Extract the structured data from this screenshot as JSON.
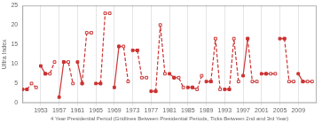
{
  "chart_data": {
    "type": "line",
    "xlabel": "4 Year Presidential Period (Gridlines Between Presidential Periods, Ticks Between 2nd and 3rd Year)",
    "ylabel": "Ultra Index",
    "color": "#cc3333",
    "xlim": [
      1949,
      2013
    ],
    "xticks": [
      1953,
      1957,
      1961,
      1965,
      1969,
      1973,
      1977,
      1981,
      1985,
      1989,
      1993,
      1997,
      2001,
      2005,
      2009
    ],
    "ylim": [
      0,
      25
    ],
    "yticks": [
      0,
      5,
      10,
      15,
      20,
      25
    ],
    "grid": "x",
    "series": [
      {
        "x": [
          1949,
          1950
        ],
        "values": [
          3.5,
          3.5
        ],
        "line_style": "solid",
        "marker": "square"
      },
      {
        "x": [
          1950,
          1951,
          1952
        ],
        "values": [
          3.5,
          5.0,
          4.0
        ],
        "line_style": "dashed",
        "marker": "square_open"
      },
      {
        "x": [
          1953,
          1954
        ],
        "values": [
          9.5,
          7.5
        ],
        "line_style": "solid",
        "marker": "square"
      },
      {
        "x": [
          1954,
          1955,
          1956
        ],
        "values": [
          7.5,
          7.5,
          10.5
        ],
        "line_style": "dashed",
        "marker": "square_open"
      },
      {
        "x": [
          1957,
          1958
        ],
        "values": [
          1.5,
          10.5
        ],
        "line_style": "solid",
        "marker": "square"
      },
      {
        "x": [
          1958,
          1959,
          1960
        ],
        "values": [
          10.5,
          10.5,
          5.0
        ],
        "line_style": "dashed",
        "marker": "square_open"
      },
      {
        "x": [
          1961,
          1962
        ],
        "values": [
          10.5,
          5.0
        ],
        "line_style": "solid",
        "marker": "square"
      },
      {
        "x": [
          1962,
          1963,
          1964
        ],
        "values": [
          5.0,
          18.0,
          18.0
        ],
        "line_style": "dashed",
        "marker": "square_open"
      },
      {
        "x": [
          1965,
          1966
        ],
        "values": [
          5.0,
          5.0
        ],
        "line_style": "solid",
        "marker": "square"
      },
      {
        "x": [
          1966,
          1967,
          1968
        ],
        "values": [
          5.0,
          23.0,
          23.0
        ],
        "line_style": "dashed",
        "marker": "square_open"
      },
      {
        "x": [
          1969,
          1970
        ],
        "values": [
          4.0,
          14.5
        ],
        "line_style": "solid",
        "marker": "square"
      },
      {
        "x": [
          1970,
          1971,
          1972
        ],
        "values": [
          14.5,
          14.5,
          5.5
        ],
        "line_style": "dashed",
        "marker": "square_open"
      },
      {
        "x": [
          1973,
          1974
        ],
        "values": [
          13.5,
          13.5
        ],
        "line_style": "solid",
        "marker": "square"
      },
      {
        "x": [
          1974,
          1975,
          1976
        ],
        "values": [
          13.5,
          6.5,
          6.5
        ],
        "line_style": "dashed",
        "marker": "square_open"
      },
      {
        "x": [
          1977,
          1978
        ],
        "values": [
          3.0,
          3.0
        ],
        "line_style": "solid",
        "marker": "square"
      },
      {
        "x": [
          1978,
          1979,
          1980
        ],
        "values": [
          3.0,
          20.0,
          7.5
        ],
        "line_style": "dashed",
        "marker": "square_open"
      },
      {
        "x": [
          1981,
          1982
        ],
        "values": [
          7.5,
          6.5
        ],
        "line_style": "solid",
        "marker": "square"
      },
      {
        "x": [
          1982,
          1983,
          1984
        ],
        "values": [
          6.5,
          6.5,
          4.0
        ],
        "line_style": "dashed",
        "marker": "square_open"
      },
      {
        "x": [
          1985,
          1986
        ],
        "values": [
          4.0,
          4.0
        ],
        "line_style": "solid",
        "marker": "square"
      },
      {
        "x": [
          1986,
          1987,
          1988
        ],
        "values": [
          4.0,
          3.5,
          7.0
        ],
        "line_style": "dashed",
        "marker": "square_open"
      },
      {
        "x": [
          1989,
          1990
        ],
        "values": [
          5.5,
          5.5
        ],
        "line_style": "solid",
        "marker": "square"
      },
      {
        "x": [
          1990,
          1991,
          1992
        ],
        "values": [
          5.5,
          16.5,
          3.5
        ],
        "line_style": "dashed",
        "marker": "square_open"
      },
      {
        "x": [
          1993,
          1994
        ],
        "values": [
          3.5,
          3.5
        ],
        "line_style": "solid",
        "marker": "square"
      },
      {
        "x": [
          1994,
          1995,
          1996
        ],
        "values": [
          3.5,
          16.5,
          5.5
        ],
        "line_style": "dashed",
        "marker": "square_open"
      },
      {
        "x": [
          1997,
          1998
        ],
        "values": [
          7.0,
          16.5
        ],
        "line_style": "solid",
        "marker": "square"
      },
      {
        "x": [
          1998,
          1999,
          2000
        ],
        "values": [
          16.5,
          5.5,
          5.5
        ],
        "line_style": "dashed",
        "marker": "square_open"
      },
      {
        "x": [
          2001,
          2002
        ],
        "values": [
          7.5,
          7.5
        ],
        "line_style": "solid",
        "marker": "square"
      },
      {
        "x": [
          2002,
          2003,
          2004
        ],
        "values": [
          7.5,
          7.5,
          7.5
        ],
        "line_style": "dashed",
        "marker": "square_open"
      },
      {
        "x": [
          2005,
          2006
        ],
        "values": [
          16.5,
          16.5
        ],
        "line_style": "solid",
        "marker": "square"
      },
      {
        "x": [
          2006,
          2007,
          2008
        ],
        "values": [
          16.5,
          5.5,
          5.5
        ],
        "line_style": "dashed",
        "marker": "square_open"
      },
      {
        "x": [
          2009,
          2010
        ],
        "values": [
          7.5,
          5.5
        ],
        "line_style": "solid",
        "marker": "square"
      },
      {
        "x": [
          2010,
          2011,
          2012
        ],
        "values": [
          5.5,
          5.5,
          5.5
        ],
        "line_style": "dashed",
        "marker": "square_open"
      }
    ]
  }
}
